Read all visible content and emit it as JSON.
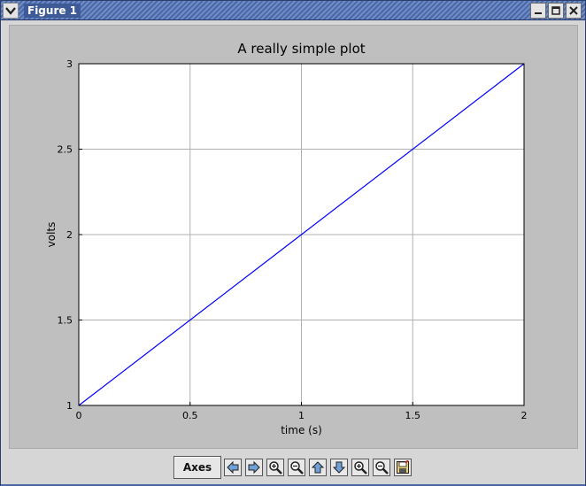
{
  "window": {
    "title": "Figure 1",
    "accent_color": "#4a68a8"
  },
  "toolbar": {
    "axes_label": "Axes",
    "buttons": [
      {
        "name": "pan-left-button",
        "icon": "arrow-left-icon"
      },
      {
        "name": "pan-right-button",
        "icon": "arrow-right-icon"
      },
      {
        "name": "zoom-in-x-button",
        "icon": "zoom-in-icon"
      },
      {
        "name": "zoom-out-x-button",
        "icon": "zoom-out-icon"
      },
      {
        "name": "pan-up-button",
        "icon": "arrow-up-icon"
      },
      {
        "name": "pan-down-button",
        "icon": "arrow-down-icon"
      },
      {
        "name": "zoom-in-y-button",
        "icon": "zoom-in-icon"
      },
      {
        "name": "zoom-out-y-button",
        "icon": "zoom-out-icon"
      },
      {
        "name": "save-button",
        "icon": "save-icon"
      }
    ]
  },
  "chart_data": {
    "type": "line",
    "title": "A really simple plot",
    "xlabel": "time (s)",
    "ylabel": "volts",
    "xlim": [
      0,
      2
    ],
    "ylim": [
      1,
      3
    ],
    "xticks": [
      "0",
      "0.5",
      "1",
      "1.5",
      "2"
    ],
    "yticks": [
      "1",
      "1.5",
      "2",
      "2.5",
      "3"
    ],
    "grid": true,
    "series": [
      {
        "color": "#0000ff",
        "x": [
          0,
          1,
          2
        ],
        "y": [
          1,
          2,
          3
        ]
      }
    ]
  }
}
